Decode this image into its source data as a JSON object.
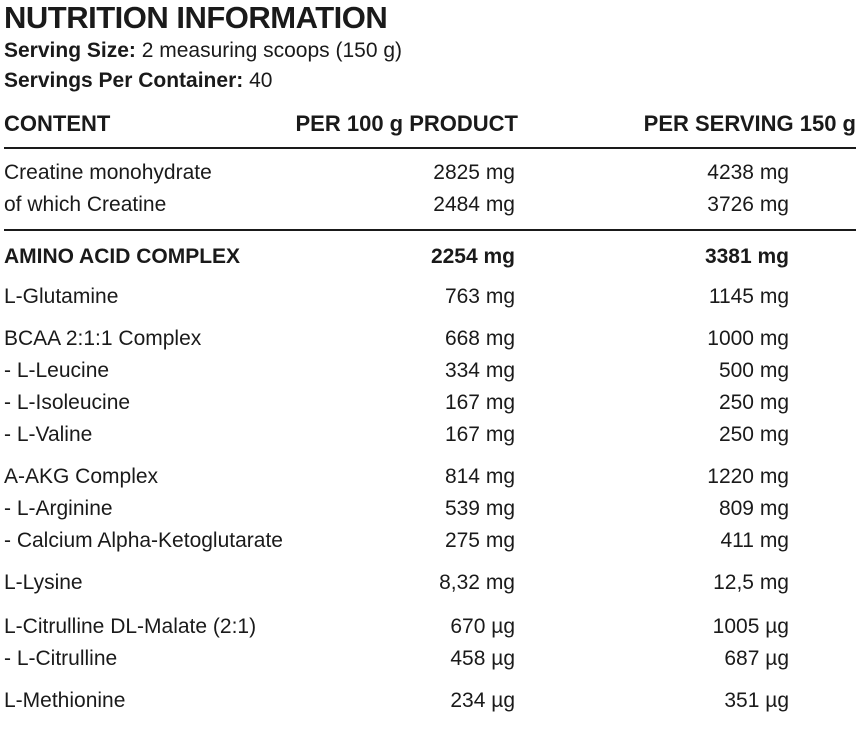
{
  "title": "NUTRITION INFORMATION",
  "serving_size": {
    "label": "Serving Size:",
    "value": " 2 measuring scoops (150 g)"
  },
  "servings_per_container": {
    "label": "Servings Per Container:",
    "value": " 40"
  },
  "table": {
    "headers": [
      "CONTENT",
      "PER 100 g PRODUCT",
      "PER SERVING 150 g"
    ],
    "groups": [
      {
        "rows": [
          [
            "Creatine monohydrate",
            "2825 mg",
            "4238 mg"
          ],
          [
            "of which Creatine",
            "2484 mg",
            "3726 mg"
          ]
        ]
      },
      {
        "bold": true,
        "rows": [
          [
            "AMINO ACID COMPLEX",
            "2254 mg",
            "3381 mg"
          ]
        ]
      },
      {
        "rows": [
          [
            "L-Glutamine",
            "763 mg",
            "1145 mg"
          ]
        ]
      },
      {
        "rows": [
          [
            "BCAA 2:1:1 Complex",
            "668 mg",
            "1000 mg"
          ],
          [
            "- L-Leucine",
            "334 mg",
            "500 mg"
          ],
          [
            "- L-Isoleucine",
            "167 mg",
            "250 mg"
          ],
          [
            "- L-Valine",
            "167 mg",
            "250 mg"
          ]
        ]
      },
      {
        "rows": [
          [
            "A-AKG Complex",
            "814 mg",
            "1220 mg"
          ],
          [
            "- L-Arginine",
            "539 mg",
            "809 mg"
          ],
          [
            "- Calcium Alpha-Ketoglutarate",
            "275 mg",
            "411 mg"
          ]
        ]
      },
      {
        "rows": [
          [
            "L-Lysine",
            "8,32 mg",
            "12,5 mg"
          ]
        ]
      },
      {
        "rows": [
          [
            "L-Citrulline DL-Malate (2:1)",
            "670 µg",
            "1005 µg"
          ],
          [
            "- L-Citrulline",
            "458 µg",
            "687 µg"
          ]
        ]
      },
      {
        "rows": [
          [
            "L-Methionine",
            "234 µg",
            "351 µg"
          ]
        ]
      }
    ]
  }
}
